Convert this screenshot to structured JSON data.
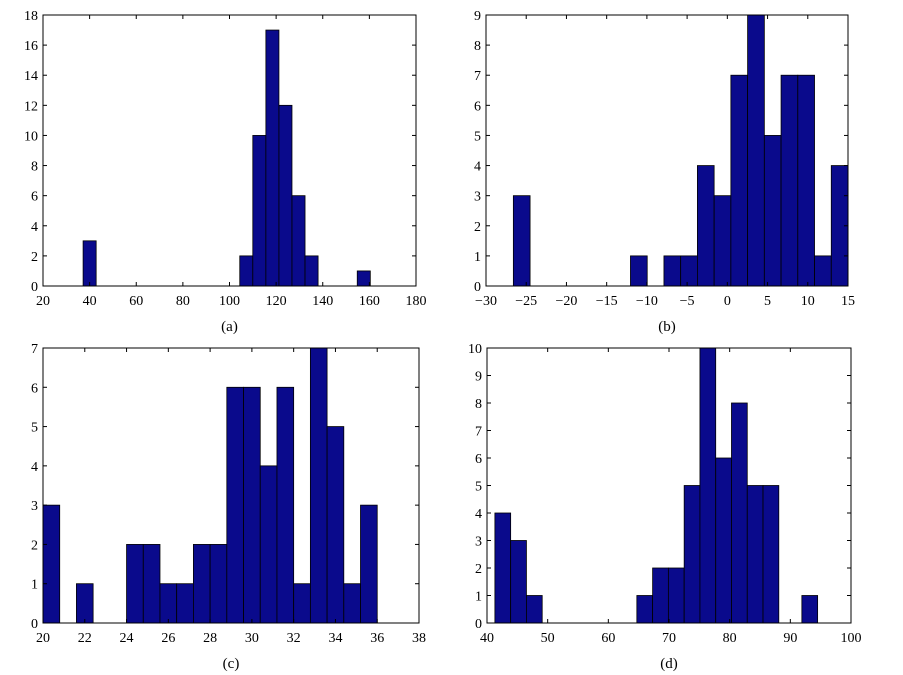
{
  "colors": {
    "bar_fill": "#0a0a8c",
    "bar_edge": "#000000",
    "axes": "#000000",
    "background": "#ffffff"
  },
  "chart_data": [
    {
      "type": "bar",
      "caption": "(a)",
      "xlim": [
        20,
        180
      ],
      "ylim": [
        0,
        18
      ],
      "xticks": [
        20,
        40,
        60,
        80,
        100,
        120,
        140,
        160,
        180
      ],
      "yticks": [
        0,
        2,
        4,
        6,
        8,
        10,
        12,
        14,
        16,
        18
      ],
      "bin_width": 5.6,
      "bins": [
        {
          "x0": 37.2,
          "count": 3
        },
        {
          "x0": 104.4,
          "count": 2
        },
        {
          "x0": 110.0,
          "count": 10
        },
        {
          "x0": 115.6,
          "count": 17
        },
        {
          "x0": 121.2,
          "count": 12
        },
        {
          "x0": 126.8,
          "count": 6
        },
        {
          "x0": 132.4,
          "count": 2
        },
        {
          "x0": 154.8,
          "count": 1
        }
      ]
    },
    {
      "type": "bar",
      "caption": "(b)",
      "xlim": [
        -30,
        15
      ],
      "ylim": [
        0,
        9
      ],
      "xticks": [
        -30,
        -25,
        -20,
        -15,
        -10,
        -5,
        0,
        5,
        10,
        15
      ],
      "yticks": [
        0,
        1,
        2,
        3,
        4,
        5,
        6,
        7,
        8,
        9
      ],
      "bin_width": 2.08,
      "bins": [
        {
          "x0": -26.6,
          "count": 3
        },
        {
          "x0": -12.04,
          "count": 1
        },
        {
          "x0": -7.88,
          "count": 1
        },
        {
          "x0": -5.8,
          "count": 1
        },
        {
          "x0": -3.72,
          "count": 4
        },
        {
          "x0": -1.64,
          "count": 3
        },
        {
          "x0": 0.44,
          "count": 7
        },
        {
          "x0": 2.52,
          "count": 9
        },
        {
          "x0": 4.6,
          "count": 5
        },
        {
          "x0": 6.68,
          "count": 7
        },
        {
          "x0": 8.76,
          "count": 7
        },
        {
          "x0": 10.84,
          "count": 1
        },
        {
          "x0": 12.92,
          "count": 4
        }
      ]
    },
    {
      "type": "bar",
      "caption": "(c)",
      "xlim": [
        20,
        38
      ],
      "ylim": [
        0,
        7
      ],
      "xticks": [
        20,
        22,
        24,
        26,
        28,
        30,
        32,
        34,
        36,
        38
      ],
      "yticks": [
        0,
        1,
        2,
        3,
        4,
        5,
        6,
        7
      ],
      "bin_width": 0.8,
      "bins": [
        {
          "x0": 20.0,
          "count": 3
        },
        {
          "x0": 21.6,
          "count": 1
        },
        {
          "x0": 24.0,
          "count": 2
        },
        {
          "x0": 24.8,
          "count": 2
        },
        {
          "x0": 25.6,
          "count": 1
        },
        {
          "x0": 26.4,
          "count": 1
        },
        {
          "x0": 27.2,
          "count": 2
        },
        {
          "x0": 28.0,
          "count": 2
        },
        {
          "x0": 28.8,
          "count": 6
        },
        {
          "x0": 29.6,
          "count": 6
        },
        {
          "x0": 30.4,
          "count": 4
        },
        {
          "x0": 31.2,
          "count": 6
        },
        {
          "x0": 32.0,
          "count": 1
        },
        {
          "x0": 32.8,
          "count": 7
        },
        {
          "x0": 33.6,
          "count": 5
        },
        {
          "x0": 34.4,
          "count": 1
        },
        {
          "x0": 35.2,
          "count": 3
        }
      ]
    },
    {
      "type": "bar",
      "caption": "(d)",
      "xlim": [
        40,
        100
      ],
      "ylim": [
        0,
        10
      ],
      "xticks": [
        40,
        50,
        60,
        70,
        80,
        90,
        100
      ],
      "yticks": [
        0,
        1,
        2,
        3,
        4,
        5,
        6,
        7,
        8,
        9,
        10
      ],
      "bin_width": 2.6,
      "bins": [
        {
          "x0": 41.3,
          "count": 4
        },
        {
          "x0": 43.9,
          "count": 3
        },
        {
          "x0": 46.5,
          "count": 1
        },
        {
          "x0": 64.7,
          "count": 1
        },
        {
          "x0": 67.3,
          "count": 2
        },
        {
          "x0": 69.9,
          "count": 2
        },
        {
          "x0": 72.5,
          "count": 5
        },
        {
          "x0": 75.1,
          "count": 10
        },
        {
          "x0": 77.7,
          "count": 6
        },
        {
          "x0": 80.3,
          "count": 8
        },
        {
          "x0": 82.9,
          "count": 5
        },
        {
          "x0": 85.5,
          "count": 5
        },
        {
          "x0": 91.9,
          "count": 1
        }
      ]
    }
  ]
}
